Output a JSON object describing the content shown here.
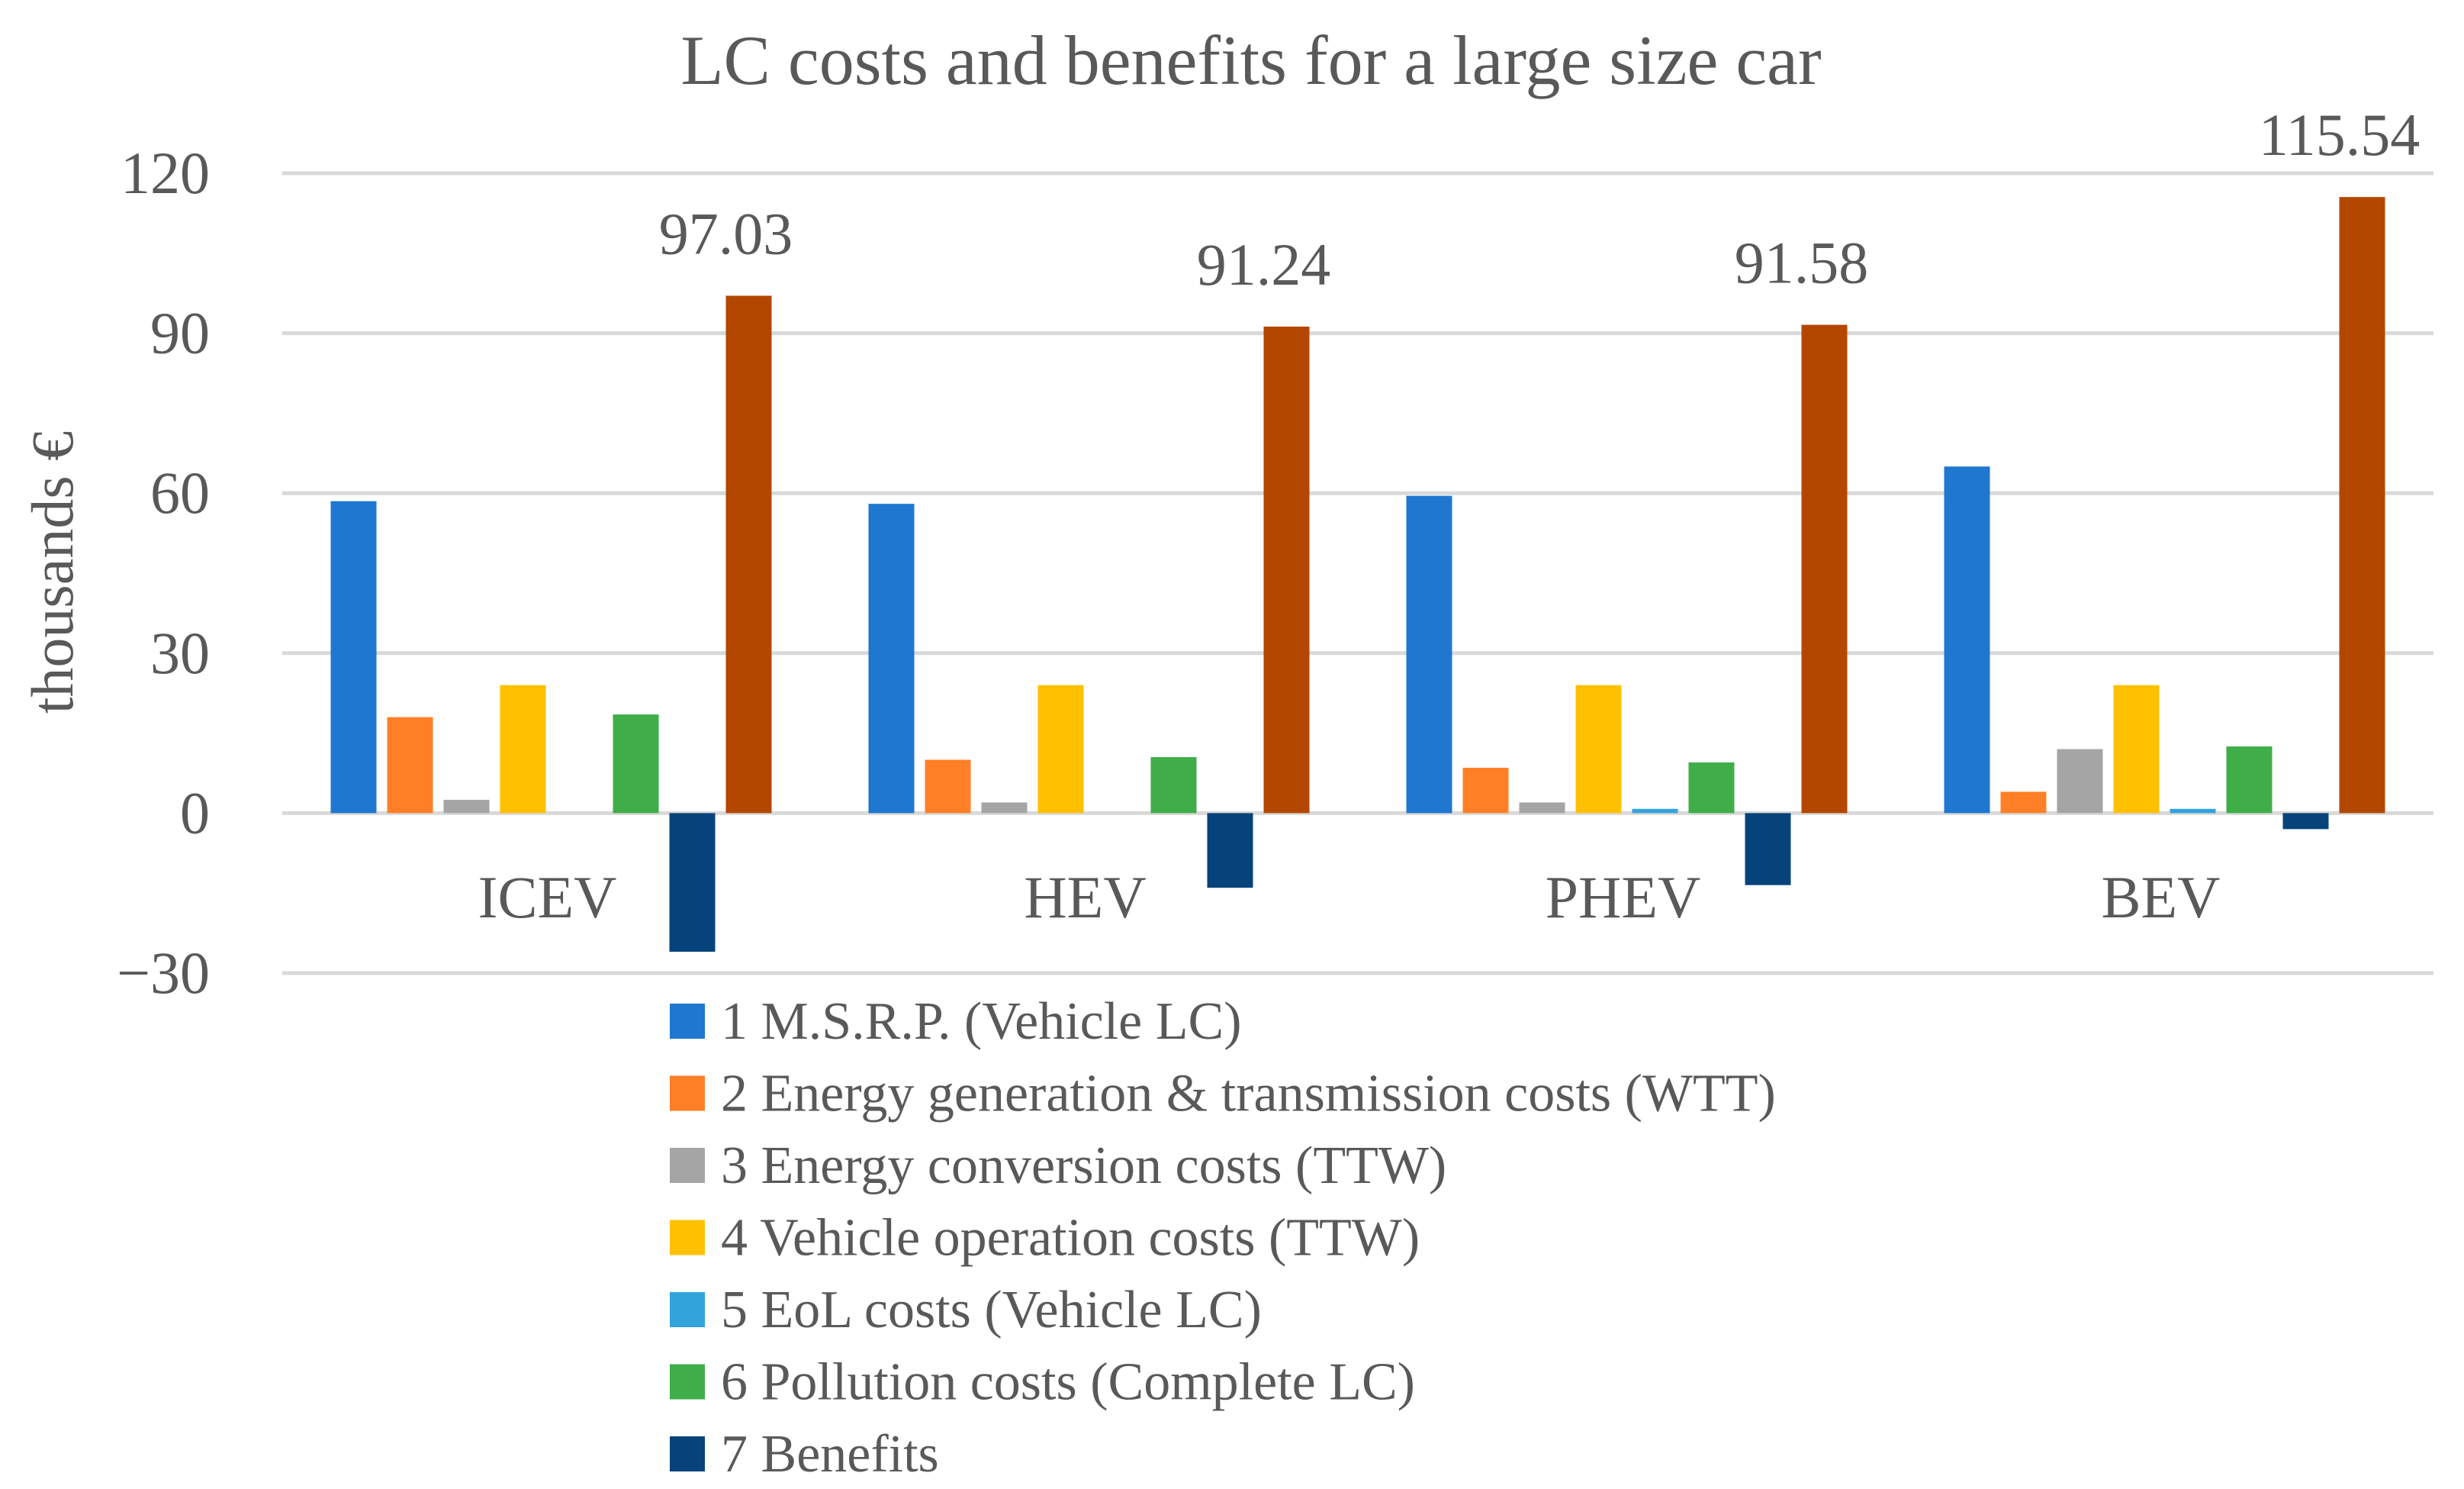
{
  "chart_data": {
    "type": "bar",
    "title": "LC costs and benefits for a large size car",
    "xlabel": "",
    "ylabel": "thousands €",
    "ylim": [
      -30,
      120
    ],
    "yticks": [
      -30,
      0,
      30,
      60,
      90,
      120
    ],
    "ytick_labels": [
      "−30",
      "0",
      "30",
      "60",
      "90",
      "120"
    ],
    "grid": true,
    "legend_position": "bottom",
    "categories": [
      "ICEV",
      "HEV",
      "PHEV",
      "BEV"
    ],
    "series": [
      {
        "name": "1 M.S.R.P. (Vehicle LC)",
        "color": "#1f77d0",
        "values": [
          58.5,
          58,
          59.5,
          65
        ]
      },
      {
        "name": "2 Energy generation & transmission costs (WTT)",
        "color": "#ff7f27",
        "values": [
          18,
          10,
          8.5,
          4
        ]
      },
      {
        "name": "3 Energy conversion costs (TTW)",
        "color": "#a5a5a5",
        "values": [
          2.5,
          2,
          2,
          12
        ]
      },
      {
        "name": "4 Vehicle operation costs (TTW)",
        "color": "#ffc000",
        "values": [
          24,
          24,
          24,
          24
        ]
      },
      {
        "name": "5 EoL costs (Vehicle LC)",
        "color": "#33a3dc",
        "values": [
          0,
          0,
          0.8,
          0.8
        ]
      },
      {
        "name": "6 Pollution costs (Complete LC)",
        "color": "#3fae49",
        "values": [
          18.5,
          10.5,
          9.5,
          12.5
        ]
      },
      {
        "name": "7 Benefits",
        "color": "#06437a",
        "values": [
          -26,
          -14,
          -13.5,
          -3
        ]
      },
      {
        "name": "Total",
        "color": "#b34700",
        "values": [
          97.03,
          91.24,
          91.58,
          115.54
        ],
        "show_in_legend": false
      }
    ],
    "data_labels": [
      "97.03",
      "91.24",
      "91.58",
      "115.54"
    ]
  }
}
